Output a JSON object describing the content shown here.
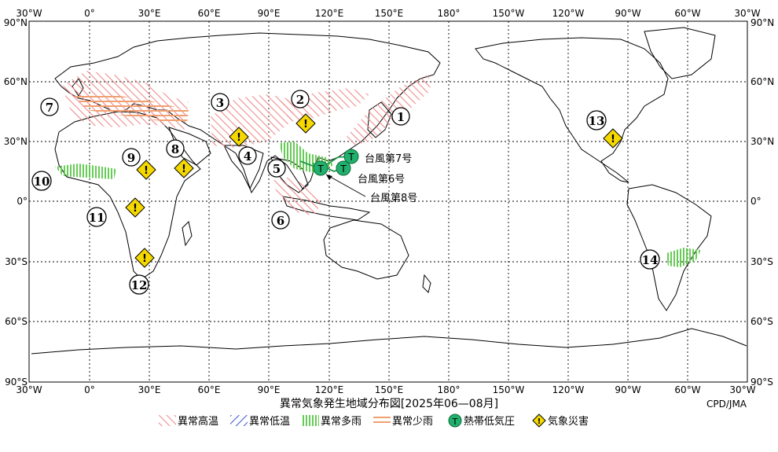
{
  "title": "異常気象発生地域分布図[2025年06—08月]",
  "credit": "CPD/JMA",
  "axes": {
    "lon_labels": [
      "30°W",
      "0°",
      "30°E",
      "60°E",
      "90°E",
      "120°E",
      "150°E",
      "180°",
      "150°W",
      "120°W",
      "90°W",
      "60°W",
      "30°W"
    ],
    "lat_labels": [
      "90°N",
      "60°N",
      "30°N",
      "0°",
      "30°S",
      "60°S",
      "90°S"
    ]
  },
  "region_numbers": [
    "1",
    "2",
    "3",
    "4",
    "5",
    "6",
    "7",
    "8",
    "9",
    "10",
    "11",
    "12",
    "13",
    "14"
  ],
  "typhoons": [
    {
      "label": "台風第7号"
    },
    {
      "label": "台風第6号"
    },
    {
      "label": "台風第8号"
    }
  ],
  "disaster_symbol": "!",
  "ty_symbol": "T",
  "legend": {
    "hot": "異常高温",
    "cold": "異常低温",
    "wet": "異常多雨",
    "dry": "異常少雨",
    "tc": "熱帯低気圧",
    "disaster": "気象災害"
  },
  "colors": {
    "hot": "#f08c8c",
    "cold": "#4a5fd8",
    "wet": "#66cc55",
    "dry": "#f0a070",
    "tc_fill": "#22b06e",
    "disaster_fill": "#f5d800"
  }
}
